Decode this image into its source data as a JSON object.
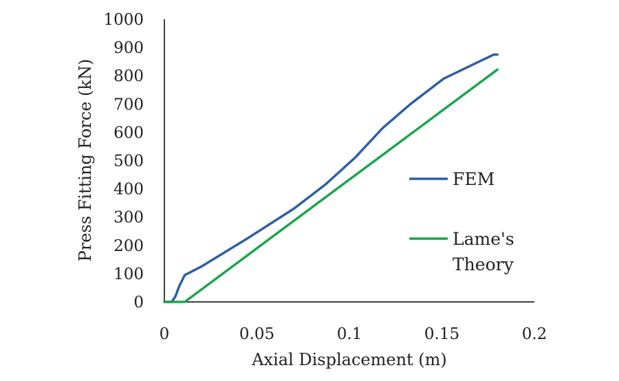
{
  "chart_data": {
    "type": "line",
    "title": "",
    "xlabel": "Axial Displacement (m)",
    "ylabel": "Press Fitting Force (kN)",
    "xlim": [
      0,
      0.2
    ],
    "ylim": [
      0,
      1000
    ],
    "x_ticks": [
      0,
      0.05,
      0.1,
      0.15,
      0.2
    ],
    "x_tick_labels": [
      "0",
      "0.05",
      "0.1",
      "0.15",
      "0.2"
    ],
    "y_ticks": [
      0,
      100,
      200,
      300,
      400,
      500,
      600,
      700,
      800,
      900,
      1000
    ],
    "y_tick_labels": [
      "0",
      "100",
      "200",
      "300",
      "400",
      "500",
      "600",
      "700",
      "800",
      "900",
      "1000"
    ],
    "grid": false,
    "legend_position": "right",
    "series": [
      {
        "name": "FEM",
        "color": "#2e5ea8",
        "points": [
          [
            0,
            0
          ],
          [
            0.004,
            0
          ],
          [
            0.006,
            20
          ],
          [
            0.008,
            55
          ],
          [
            0.011,
            95
          ],
          [
            0.02,
            125
          ],
          [
            0.045,
            225
          ],
          [
            0.07,
            330
          ],
          [
            0.087,
            415
          ],
          [
            0.103,
            510
          ],
          [
            0.118,
            615
          ],
          [
            0.133,
            700
          ],
          [
            0.151,
            790
          ],
          [
            0.17,
            850
          ],
          [
            0.178,
            875
          ],
          [
            0.18,
            875
          ]
        ]
      },
      {
        "name": "Lame's Theory",
        "color": "#1aa64a",
        "points": [
          [
            0,
            0
          ],
          [
            0.011,
            0
          ],
          [
            0.18,
            822
          ]
        ]
      }
    ],
    "legend": {
      "entries": [
        {
          "label_lines": [
            "FEM"
          ]
        },
        {
          "label_lines": [
            "Lame's",
            "Theory"
          ]
        }
      ]
    }
  }
}
